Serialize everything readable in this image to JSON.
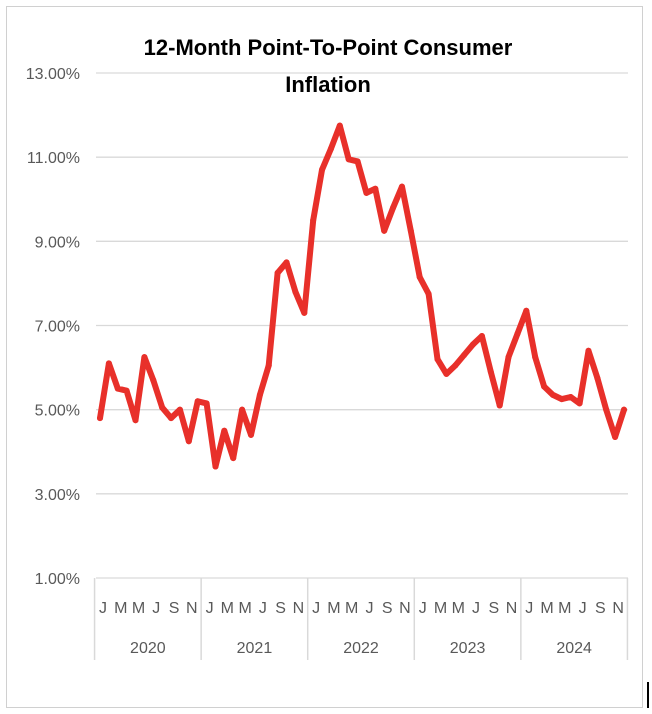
{
  "chart_data": {
    "type": "line",
    "title_line1": "12-Month Point-To-Point Consumer",
    "title_line2": "Inflation",
    "ylabel": "",
    "xlabel": "",
    "ylim": [
      1.0,
      13.0
    ],
    "yticks": [
      "1.00%",
      "3.00%",
      "5.00%",
      "7.00%",
      "9.00%",
      "11.00%",
      "13.00%"
    ],
    "ytick_values": [
      1,
      3,
      5,
      7,
      9,
      11,
      13
    ],
    "grid": true,
    "month_labels": [
      "J",
      "M",
      "M",
      "J",
      "S",
      "N"
    ],
    "month_label_indices": [
      0,
      2,
      4,
      6,
      8,
      10
    ],
    "years": [
      "2020",
      "2021",
      "2022",
      "2023",
      "2024"
    ],
    "line_color": "#e8302a",
    "series": [
      {
        "name": "12-Month Point-To-Point Consumer Inflation",
        "values": [
          4.8,
          6.1,
          5.5,
          5.45,
          4.75,
          6.25,
          5.7,
          5.05,
          4.8,
          5.0,
          4.25,
          5.2,
          5.15,
          3.65,
          4.5,
          3.85,
          5.0,
          4.4,
          5.35,
          6.05,
          8.25,
          8.5,
          7.8,
          7.3,
          9.5,
          10.7,
          11.2,
          11.75,
          10.95,
          10.9,
          10.15,
          10.25,
          9.25,
          9.8,
          10.3,
          9.25,
          8.15,
          7.75,
          6.2,
          5.85,
          6.05,
          6.3,
          6.55,
          6.75,
          5.9,
          5.1,
          6.25,
          6.8,
          7.35,
          6.25,
          5.55,
          5.35,
          5.25,
          5.3,
          5.15,
          6.4,
          5.75,
          5.0,
          4.35,
          5.0
        ]
      }
    ]
  }
}
